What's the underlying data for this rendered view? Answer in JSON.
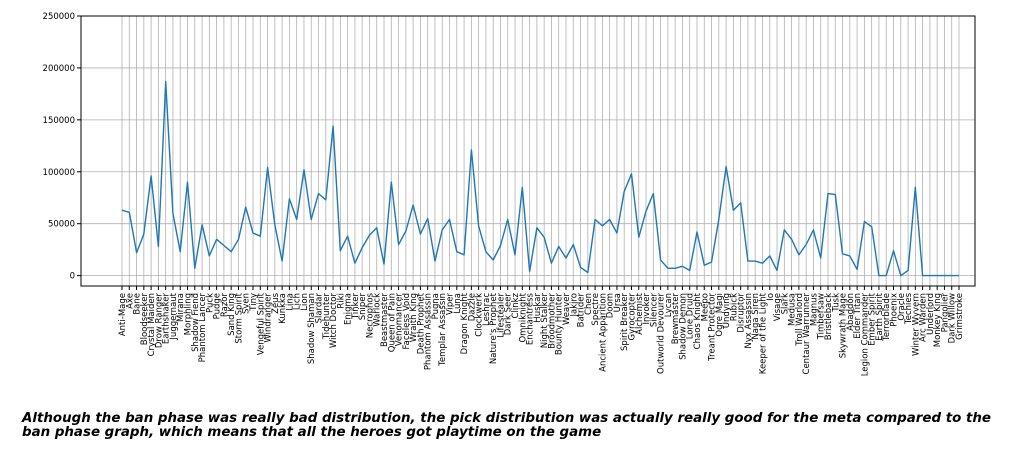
{
  "chart_data": {
    "type": "line",
    "title": "",
    "xlabel": "",
    "ylabel": "",
    "ylim": [
      -10000,
      250000
    ],
    "yticks": [
      0,
      50000,
      100000,
      150000,
      200000,
      250000
    ],
    "grid": true,
    "line_color": "#1f77b4",
    "categories": [
      "Anti-Mage",
      "Axe",
      "Bane",
      "Bloodseeker",
      "Crystal Maiden",
      "Drow Ranger",
      "Earthshaker",
      "Juggernaut",
      "Mirana",
      "Morphling",
      "Shadow Fiend",
      "Phantom Lancer",
      "Puck",
      "Pudge",
      "Razor",
      "Sand King",
      "Storm Spirit",
      "Sven",
      "Tiny",
      "Vengeful Spirit",
      "Windranger",
      "Zeus",
      "Kunkka",
      "Lina",
      "Lich",
      "Lion",
      "Shadow Shaman",
      "Slardar",
      "Tidehunter",
      "Witch Doctor",
      "Riki",
      "Enigma",
      "Tinker",
      "Sniper",
      "Necrophos",
      "Warlock",
      "Beastmaster",
      "Queen of Pain",
      "Venomancer",
      "Faceless Void",
      "Wraith King",
      "Death Prophet",
      "Phantom Assassin",
      "Pugna",
      "Templar Assassin",
      "Viper",
      "Luna",
      "Dragon Knight",
      "Dazzle",
      "Clockwerk",
      "Leshrac",
      "Nature's Prophet",
      "Lifestealer",
      "Dark Seer",
      "Clinkz",
      "Omniknight",
      "Enchantress",
      "Huskar",
      "Night Stalker",
      "Broodmother",
      "Bounty Hunter",
      "Weaver",
      "Jakiro",
      "Batrider",
      "Chen",
      "Spectre",
      "Ancient Apparition",
      "Doom",
      "Ursa",
      "Spirit Breaker",
      "Gyrocopter",
      "Alchemist",
      "Invoker",
      "Silencer",
      "Outworld Devourer",
      "Lycan",
      "Brewmaster",
      "Shadow Demon",
      "Lone Druid",
      "Chaos Knight",
      "Meepo",
      "Treant Protector",
      "Ogre Magi",
      "Undying",
      "Rubick",
      "Disruptor",
      "Nyx Assassin",
      "Naga Siren",
      "Keeper of the Light",
      "Io",
      "Visage",
      "Slark",
      "Medusa",
      "Troll Warlord",
      "Centaur Warrunner",
      "Magnus",
      "Timbersaw",
      "Bristleback",
      "Tusk",
      "Skywrath Mage",
      "Abaddon",
      "Elder Titan",
      "Legion Commander",
      "Ember Spirit",
      "Earth Spirit",
      "Terrorblade",
      "Phoenix",
      "Oracle",
      "Techies",
      "Winter Wyvern",
      "Arc Warden",
      "Underlord",
      "Monkey King",
      "Pangolier",
      "Dark Willow",
      "Grimstroke"
    ],
    "values": [
      63000,
      61000,
      22000,
      40000,
      96000,
      28000,
      187000,
      60000,
      23000,
      90000,
      7000,
      49000,
      19000,
      35000,
      29000,
      23000,
      35000,
      66000,
      41000,
      38000,
      104000,
      49000,
      14000,
      74000,
      54000,
      102000,
      54000,
      79000,
      73000,
      144000,
      24000,
      38000,
      12000,
      27000,
      39000,
      46000,
      11000,
      90000,
      30000,
      43000,
      68000,
      40000,
      55000,
      14000,
      44000,
      54000,
      23000,
      20000,
      121000,
      48000,
      23000,
      15000,
      29000,
      54000,
      20000,
      85000,
      4000,
      46000,
      37000,
      12000,
      28000,
      17000,
      30000,
      8000,
      3000,
      54000,
      48000,
      54000,
      41000,
      81000,
      98000,
      37000,
      62000,
      79000,
      15000,
      7000,
      7000,
      9000,
      5000,
      42000,
      10000,
      13000,
      54000,
      105000,
      63000,
      70000,
      14000,
      14000,
      12000,
      19000,
      5000,
      44000,
      35000,
      20000,
      30000,
      44000,
      17000,
      79000,
      78000,
      21000,
      19000,
      6000,
      52000,
      47000,
      0,
      0,
      24000,
      0,
      5000,
      85000,
      0,
      0,
      0,
      0,
      0,
      0
    ]
  },
  "caption": "Although the ban phase was really bad distribution, the pick distribution was actually really good for the meta compared to the ban phase graph, which means that all the heroes got playtime on the game"
}
